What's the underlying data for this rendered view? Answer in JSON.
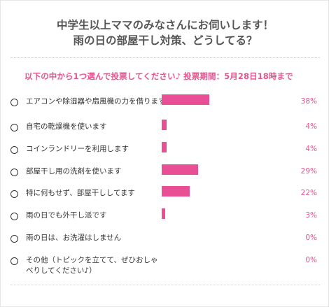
{
  "header": {
    "title_line1": "中学生以上ママのみなさんにお伺いします！",
    "title_line2": "雨の日の部屋干し対策、どうしてる？"
  },
  "poll": {
    "prompt": "以下の中から1つ選んで投票してください♪ 投票期間：5月28日18時まで",
    "accent_color": "#e94f95",
    "options": [
      {
        "label": "エアコンや除湿器や扇風機の力を借ります",
        "percent_label": "38%",
        "value": 38
      },
      {
        "label": "自宅の乾燥機を使います",
        "percent_label": "4%",
        "value": 4
      },
      {
        "label": "コインランドリーを利用します",
        "percent_label": "4%",
        "value": 4
      },
      {
        "label": "部屋干し用の洗剤を使います",
        "percent_label": "29%",
        "value": 29
      },
      {
        "label": "特に何もせず、部屋干ししてます",
        "percent_label": "22%",
        "value": 22
      },
      {
        "label": "雨の日でも外干し派です",
        "percent_label": "3%",
        "value": 3
      },
      {
        "label": "雨の日は、お洗濯はしません",
        "percent_label": "0%",
        "value": 0
      },
      {
        "label": "その他（トピックを立てて、ぜひおしゃべりしてください♪）",
        "percent_label": "0%",
        "value": 0
      }
    ]
  }
}
